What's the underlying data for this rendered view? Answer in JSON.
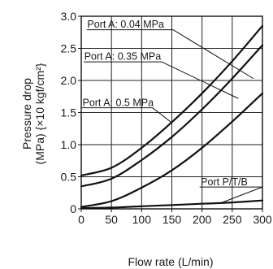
{
  "chart_data": {
    "type": "line",
    "xlabel": "Flow rate (L/min)",
    "ylabel": "Pressure drop",
    "ylabel_unit": "(MPa) {×10 kgf/cm²}",
    "xlim": [
      0,
      300
    ],
    "ylim": [
      0,
      3.0
    ],
    "xticks": [
      "0",
      "50",
      "100",
      "150",
      "200",
      "250",
      "300"
    ],
    "yticks": [
      "0",
      "0.5",
      "1.0",
      "1.5",
      "2.0",
      "2.5",
      "3.0"
    ],
    "grid": true,
    "series": [
      {
        "name": "Port A: 0.04 MPa",
        "x": [
          0,
          50,
          100,
          150,
          200,
          250,
          300
        ],
        "y": [
          0.52,
          0.64,
          0.95,
          1.35,
          1.8,
          2.3,
          2.85
        ]
      },
      {
        "name": "Port A: 0.35 MPa",
        "x": [
          0,
          50,
          100,
          150,
          200,
          250,
          300
        ],
        "y": [
          0.35,
          0.47,
          0.76,
          1.12,
          1.55,
          2.03,
          2.55
        ]
      },
      {
        "name": "Port A: 0.5 MPa",
        "x": [
          0,
          50,
          100,
          150,
          200,
          250,
          300
        ],
        "y": [
          0.03,
          0.12,
          0.33,
          0.6,
          0.95,
          1.36,
          1.8
        ]
      },
      {
        "name": "Port P/T/B",
        "x": [
          0,
          50,
          100,
          150,
          200,
          250,
          300
        ],
        "y": [
          0.01,
          0.02,
          0.04,
          0.06,
          0.08,
          0.1,
          0.13
        ]
      }
    ]
  }
}
